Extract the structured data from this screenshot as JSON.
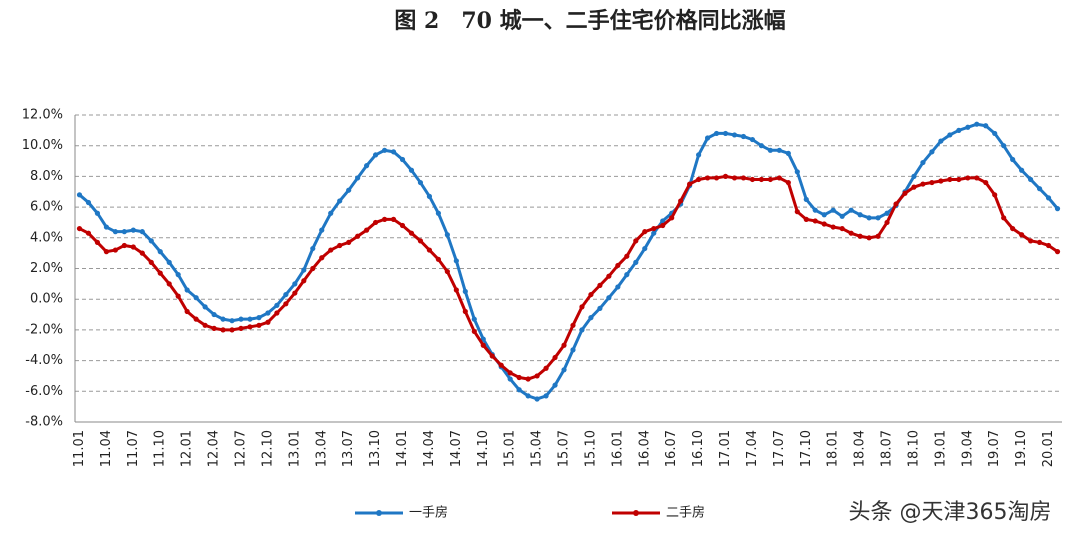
{
  "chart_data": {
    "type": "line",
    "title": "图 2　70 城一、二手住宅价格同比涨幅",
    "watermark": "头条 @天津365淘房",
    "categories": [
      "11.01",
      null,
      null,
      "11.04",
      null,
      null,
      "11.07",
      null,
      null,
      "11.10",
      null,
      null,
      "12.01",
      null,
      null,
      "12.04",
      null,
      null,
      "12.07",
      null,
      null,
      "12.10",
      null,
      null,
      "13.01",
      null,
      null,
      "13.04",
      null,
      null,
      "13.07",
      null,
      null,
      "13.10",
      null,
      null,
      "14.01",
      null,
      null,
      "14.04",
      null,
      null,
      "14.07",
      null,
      null,
      "14.10",
      null,
      null,
      "15.01",
      null,
      null,
      "15.04",
      null,
      null,
      "15.07",
      null,
      null,
      "15.10",
      null,
      null,
      "16.01",
      null,
      null,
      "16.04",
      null,
      null,
      "16.07",
      null,
      null,
      "16.10",
      null,
      null,
      "17.01",
      null,
      null,
      "17.04",
      null,
      null,
      "17.07",
      null,
      null,
      "17.10",
      null,
      null,
      "18.01",
      null,
      null,
      "18.04",
      null,
      null,
      "18.07",
      null,
      null,
      "18.10",
      null,
      null,
      "19.01",
      null,
      null,
      "19.04",
      null,
      null,
      "19.07",
      null,
      null,
      "19.10",
      null,
      null,
      "20.01",
      null
    ],
    "series": [
      {
        "name": "一手房",
        "color": "#1f77c4",
        "values": [
          6.8,
          6.3,
          5.6,
          4.7,
          4.4,
          4.4,
          4.5,
          4.4,
          3.8,
          3.1,
          2.4,
          1.6,
          0.6,
          0.1,
          -0.5,
          -1.0,
          -1.3,
          -1.4,
          -1.3,
          -1.3,
          -1.2,
          -0.9,
          -0.4,
          0.3,
          1.0,
          1.9,
          3.3,
          4.5,
          5.6,
          6.4,
          7.1,
          7.9,
          8.7,
          9.4,
          9.7,
          9.6,
          9.1,
          8.4,
          7.6,
          6.7,
          5.6,
          4.2,
          2.5,
          0.5,
          -1.3,
          -2.6,
          -3.6,
          -4.4,
          -5.2,
          -5.9,
          -6.3,
          -6.5,
          -6.3,
          -5.6,
          -4.6,
          -3.3,
          -2.0,
          -1.2,
          -0.6,
          0.1,
          0.8,
          1.6,
          2.4,
          3.3,
          4.3,
          5.1,
          5.6,
          6.2,
          7.4,
          9.4,
          10.5,
          10.8,
          10.8,
          10.7,
          10.6,
          10.4,
          10.0,
          9.7,
          9.7,
          9.5,
          8.3,
          6.5,
          5.8,
          5.5,
          5.8,
          5.4,
          5.8,
          5.5,
          5.3,
          5.3,
          5.6,
          6.1,
          7.0,
          8.0,
          8.9,
          9.6,
          10.3,
          10.7,
          11.0,
          11.2,
          11.4,
          11.3,
          10.8,
          10.0,
          9.1,
          8.4,
          7.8,
          7.2,
          6.6,
          5.9
        ]
      },
      {
        "name": "二手房",
        "color": "#c00000",
        "values": [
          4.6,
          4.3,
          3.7,
          3.1,
          3.2,
          3.5,
          3.4,
          3.0,
          2.4,
          1.7,
          1.0,
          0.2,
          -0.8,
          -1.3,
          -1.7,
          -1.9,
          -2.0,
          -2.0,
          -1.9,
          -1.8,
          -1.7,
          -1.5,
          -0.9,
          -0.3,
          0.4,
          1.2,
          2.0,
          2.7,
          3.2,
          3.5,
          3.7,
          4.1,
          4.5,
          5.0,
          5.2,
          5.2,
          4.8,
          4.3,
          3.8,
          3.2,
          2.6,
          1.8,
          0.6,
          -0.8,
          -2.1,
          -3.0,
          -3.7,
          -4.3,
          -4.8,
          -5.1,
          -5.2,
          -5.0,
          -4.5,
          -3.8,
          -3.0,
          -1.7,
          -0.5,
          0.3,
          0.9,
          1.5,
          2.2,
          2.8,
          3.8,
          4.4,
          4.6,
          4.8,
          5.3,
          6.4,
          7.5,
          7.8,
          7.9,
          7.9,
          8.0,
          7.9,
          7.9,
          7.8,
          7.8,
          7.8,
          7.9,
          7.6,
          5.7,
          5.2,
          5.1,
          4.9,
          4.7,
          4.6,
          4.3,
          4.1,
          4.0,
          4.1,
          5.0,
          6.2,
          6.9,
          7.3,
          7.5,
          7.6,
          7.7,
          7.8,
          7.8,
          7.9,
          7.9,
          7.6,
          6.8,
          5.3,
          4.6,
          4.2,
          3.8,
          3.7,
          3.5,
          3.1
        ]
      }
    ],
    "ylim": [
      -8,
      12
    ],
    "yticks": [
      {
        "value": -8,
        "label": "-8.0%"
      },
      {
        "value": -6,
        "label": "-6.0%"
      },
      {
        "value": -4,
        "label": "-4.0%"
      },
      {
        "value": -2,
        "label": "-2.0%"
      },
      {
        "value": 0,
        "label": "0.0%"
      },
      {
        "value": 2,
        "label": "2.0%"
      },
      {
        "value": 4,
        "label": "4.0%"
      },
      {
        "value": 6,
        "label": "6.0%"
      },
      {
        "value": 8,
        "label": "8.0%"
      },
      {
        "value": 10,
        "label": "10.0%"
      },
      {
        "value": 12,
        "label": "12.0%"
      }
    ],
    "grid": true,
    "legend": "bottom"
  }
}
